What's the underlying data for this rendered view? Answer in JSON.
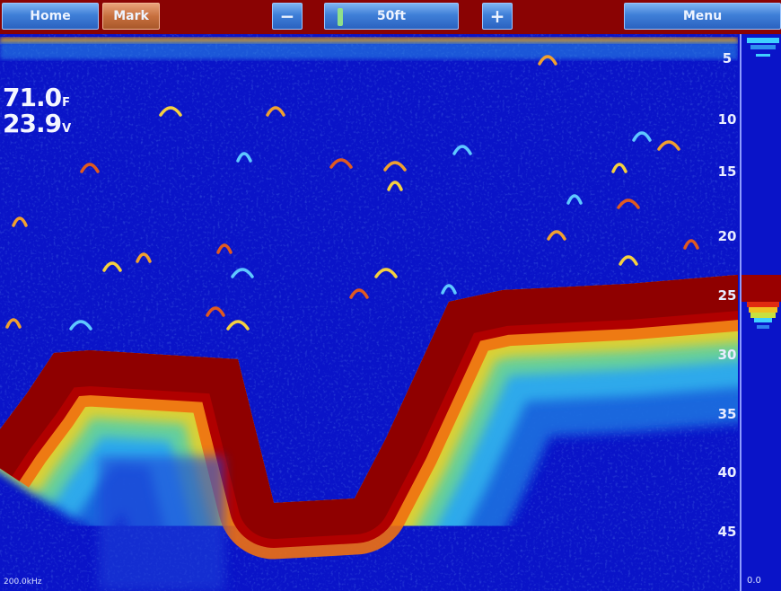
{
  "toolbar": {
    "home_label": "Home",
    "mark_label": "Mark",
    "zoom_out_label": "−",
    "range_label": "50ft",
    "zoom_in_label": "+",
    "menu_label": "Menu"
  },
  "readouts": {
    "temperature": "71.0",
    "temperature_unit": "F",
    "voltage": "23.9",
    "voltage_unit": "V"
  },
  "depth_scale": [
    "5",
    "10",
    "15",
    "20",
    "25",
    "30",
    "35",
    "40",
    "45"
  ],
  "frequency": "200.0kHz",
  "flasher_value": "0.0",
  "colors": {
    "water": "#0a14c8",
    "bottom": "#9a0000",
    "toolbar": "#8a0303",
    "button": "#3f7fd8",
    "mark_button": "#c7703f"
  }
}
